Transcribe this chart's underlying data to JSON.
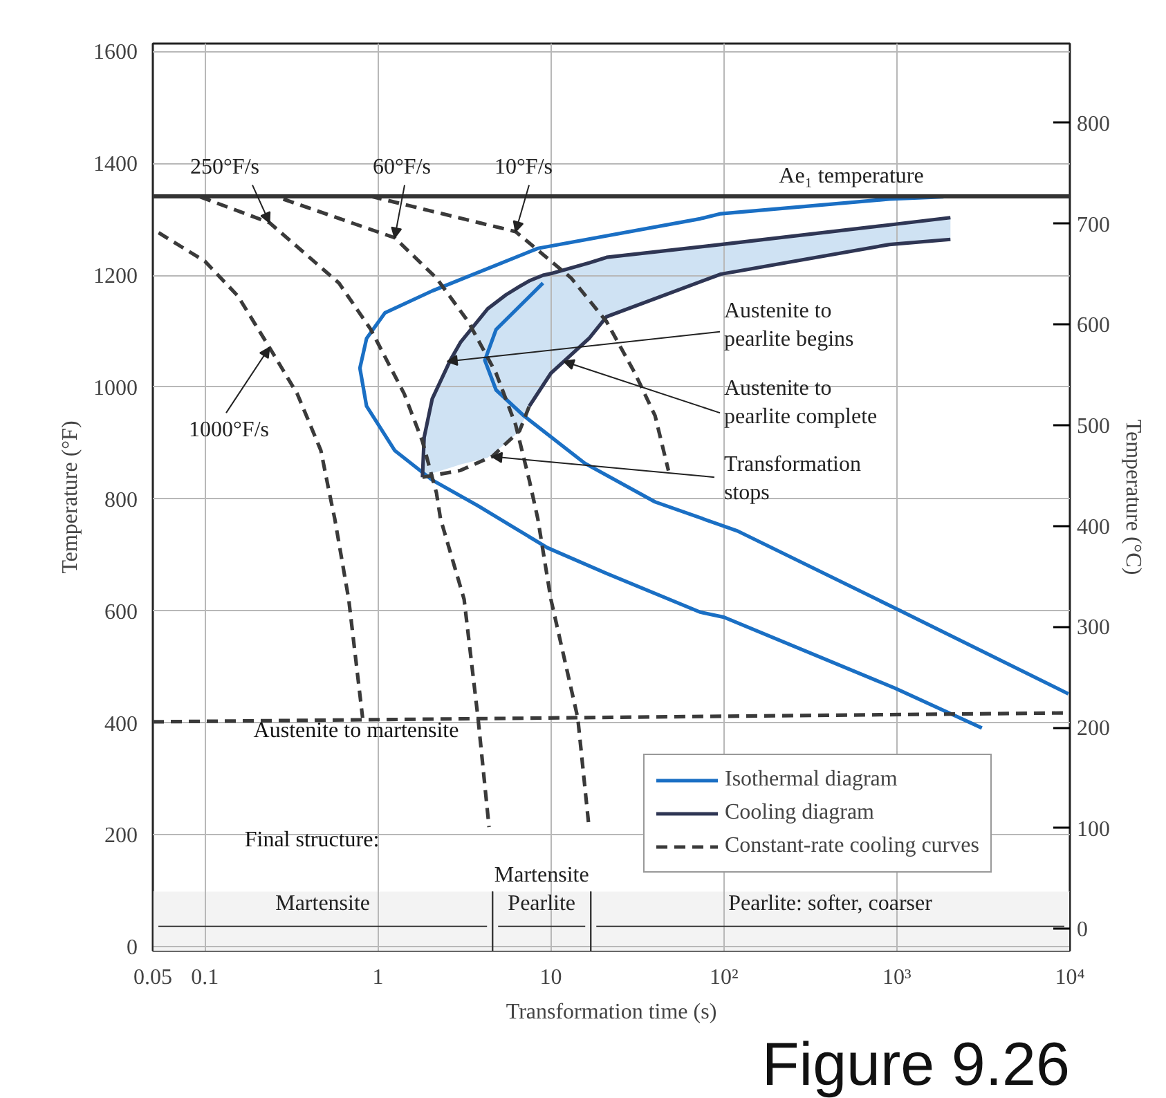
{
  "chart_data": {
    "type": "line",
    "xlabel": "Transformation time (s)",
    "ylabel": "Temperature (°F)",
    "y2label": "Temperature (°C)",
    "log": "x",
    "grid": true,
    "legend": "bottom right",
    "xlim": [
      0.05,
      10000
    ],
    "ylim": [
      -7,
      1614
    ],
    "y2lim": [
      -21.7,
      878.9
    ],
    "xticks": [
      0.05,
      0.1,
      1,
      10,
      {
        "value": 100,
        "label": "10²"
      },
      {
        "value": 1000,
        "label": "10³"
      },
      {
        "value": 10000,
        "label": "10⁴"
      }
    ],
    "yticks": [
      0,
      200,
      400,
      600,
      800,
      1000,
      1200,
      1400,
      1600
    ],
    "y2ticks": [
      0,
      100,
      200,
      300,
      400,
      500,
      600,
      700,
      800
    ],
    "series": [
      {
        "name": "Isothermal diagram",
        "color": "#1a6fc4",
        "x": [
          1860,
          905,
          96,
          73,
          8.4,
          2.06,
          1.1,
          0.86,
          0.787,
          0.86,
          1.25,
          2.06,
          3.79,
          9.55,
          21,
          73,
          100,
          977,
          3100
        ],
        "values": [
          1340,
          1336,
          1310,
          1301,
          1248,
          1172,
          1133,
          1087,
          1034,
          966,
          887,
          834,
          788,
          713,
          667,
          598,
          589,
          462,
          391
        ]
      },
      {
        "color": "#1a6fc4",
        "x": [
          9.0,
          4.82,
          4.15,
          4.82,
          6.97,
          15.7,
          40,
          120,
          977,
          9800
        ],
        "values": [
          1186,
          1103,
          1048,
          995,
          949,
          864,
          795,
          743,
          605,
          452
        ]
      },
      {
        "name": "Cooling diagram",
        "color": "#2f3654",
        "x": [
          1.81,
          1.85,
          2.06,
          2.62,
          3.0,
          4.31,
          5.5,
          6.59,
          7.5,
          9.0,
          10,
          16.6,
          21,
          96,
          905,
          2040
        ],
        "values": [
          839,
          910,
          979,
          1048,
          1080,
          1140,
          1165,
          1180,
          1190,
          1200,
          1203,
          1222,
          1232,
          1255,
          1290,
          1303
        ],
        "upper": [
          839,
          910,
          979,
          1048,
          1080,
          1140,
          1165,
          1180,
          1190,
          1200,
          1203,
          1222,
          1232,
          1255,
          1290,
          1303
        ],
        "lower": [
          839,
          840,
          846,
          856,
          862,
          874,
          900,
          922,
          966,
          1000,
          1025,
          1087,
          1126,
          1202,
          1255,
          1264
        ]
      },
      {
        "color": "#2f3654",
        "x": [
          7.5,
          10,
          16.6,
          21,
          96,
          905,
          2040
        ],
        "values": [
          966,
          1025,
          1087,
          1126,
          1202,
          1255,
          1264
        ]
      },
      {
        "name": "Constant-rate cooling curves",
        "color": "#3a3a3a",
        "line_style": "dashed",
        "x": [
          0.054,
          0.1,
          0.155,
          0.236,
          0.342,
          0.468,
          0.524,
          0.563,
          0.678,
          0.816
        ],
        "values": [
          1276,
          1225,
          1163,
          1071,
          988,
          887,
          811,
          765,
          621,
          409
        ]
      },
      {
        "color": "#3a3a3a",
        "line_style": "dashed",
        "x": [
          0.094,
          0.236,
          0.596,
          0.91,
          1.42,
          1.81,
          2.18,
          2.3,
          3.15,
          3.79,
          4.39
        ],
        "values": [
          1340,
          1294,
          1186,
          1103,
          988,
          903,
          811,
          765,
          621,
          409,
          214
        ]
      },
      {
        "color": "#3a3a3a",
        "line_style": "dashed",
        "x": [
          0.284,
          1.25,
          2.18,
          3.33,
          4.82,
          6.25,
          7.5,
          8.4,
          10,
          14.3,
          16.6
        ],
        "values": [
          1336,
          1267,
          1195,
          1117,
          1025,
          933,
          834,
          765,
          621,
          409,
          214
        ]
      },
      {
        "color": "#3a3a3a",
        "line_style": "dashed",
        "x": [
          0.91,
          6.25,
          13.1,
          21,
          30.6,
          40,
          47.8
        ],
        "values": [
          1341,
          1278,
          1195,
          1117,
          1025,
          949,
          851
        ]
      },
      {
        "color": "#3a3a3a",
        "line_style": "dashed",
        "x": [
          1.81,
          2.98,
          4.57,
          6.59,
          7.5
        ],
        "values": [
          839,
          851,
          876,
          922,
          966
        ]
      },
      {
        "color": "#3a3a3a",
        "line_style": "dashed",
        "x": [
          0.05,
          10000
        ],
        "values": [
          402,
          418
        ]
      }
    ],
    "ref_lines": [
      {
        "axis": "y",
        "value": 1341,
        "label": "Ae₁ temperature",
        "color": "#333333"
      }
    ],
    "bands": [
      {
        "axis": "x",
        "from": 0.05,
        "to": 4.6,
        "label": "Martensite",
        "color": "#f3f3f3"
      },
      {
        "axis": "x",
        "from": 4.6,
        "to": 17,
        "label": "Martensite Pearlite",
        "color": "#f3f3f3"
      },
      {
        "axis": "x",
        "from": 17,
        "to": 10000,
        "label": "Pearlite: softer, coarser",
        "color": "#f3f3f3"
      }
    ],
    "annotations": [
      {
        "text": "250°F/s",
        "x": 0.236,
        "y": 1294
      },
      {
        "text": "60°F/s",
        "x": 1.25,
        "y": 1267
      },
      {
        "text": "10°F/s",
        "x": 6.25,
        "y": 1278
      },
      {
        "text": "1000°F/s",
        "x": 0.236,
        "y": 1071
      },
      {
        "text": "Austenite to pearlite begins",
        "x": 2.52,
        "y": 1046
      },
      {
        "text": "Austenite to pearlite complete",
        "x": 11.9,
        "y": 1046
      },
      {
        "text": "Transformation stops",
        "x": 4.57,
        "y": 876
      },
      "Austenite to martensite",
      "Final structure:",
      "Figure 9.26"
    ]
  }
}
